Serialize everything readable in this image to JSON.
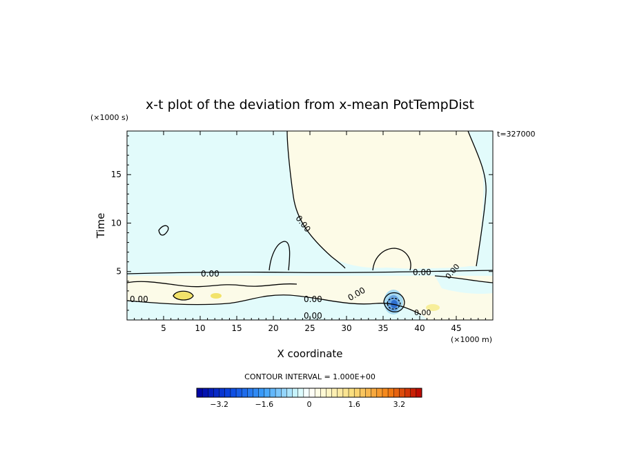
{
  "chart_data": {
    "type": "heatmap",
    "title": "x-t plot of the deviation from x-mean PotTempDist",
    "xlabel": "X coordinate",
    "ylabel": "Time",
    "x_units": "(×1000 m)",
    "y_units": "(×1000 s)",
    "time_stamp": "t=327000",
    "xlim": [
      0,
      50
    ],
    "ylim": [
      0,
      19.5
    ],
    "x_ticks": [
      5,
      10,
      15,
      20,
      25,
      30,
      35,
      40,
      45
    ],
    "y_ticks": [
      5,
      10,
      15
    ],
    "contour_interval_text": "CONTOUR INTERVAL = 1.000E+00",
    "contour_labels": [
      "0.00",
      "0.00",
      "0.00",
      "0.00",
      "0.00",
      "0.00",
      "0.00",
      "0.00",
      "0.00"
    ],
    "regions": [
      {
        "name": "negative",
        "color": "#e2fbfb"
      },
      {
        "name": "positive",
        "color": "#fdfbe7"
      }
    ],
    "colorbar": {
      "vmin": -4.0,
      "vmax": 4.0,
      "step": 0.2,
      "tick_values": [
        -3.2,
        -1.6,
        0,
        1.6,
        3.2
      ],
      "tick_labels": [
        "−3.2",
        "−1.6",
        "0",
        "1.6",
        "3.2"
      ]
    }
  }
}
